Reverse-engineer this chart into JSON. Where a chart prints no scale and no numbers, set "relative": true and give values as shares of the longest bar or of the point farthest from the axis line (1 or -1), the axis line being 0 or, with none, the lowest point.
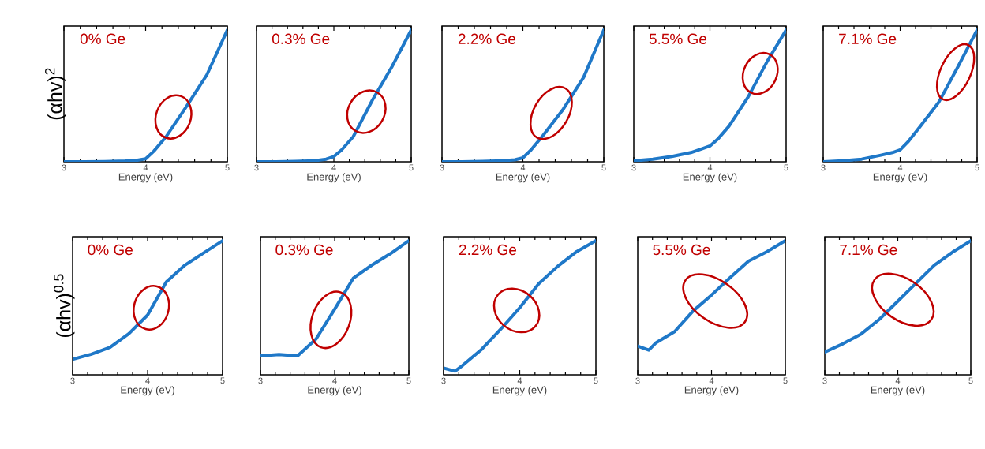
{
  "chart_data": [
    {
      "type": "line",
      "title": "0% Ge",
      "xlabel": "Energy (eV)",
      "ylabel": "(αhv)$^{2}$",
      "relative": true,
      "xlim": [
        3,
        5
      ],
      "xticks": [
        3,
        4,
        5
      ],
      "tick_labels": "x",
      "x": [
        3,
        3.25,
        3.5,
        3.75,
        3.9,
        4,
        4.1,
        4.25,
        4.5,
        4.75,
        5
      ],
      "series": [
        {
          "color": "#1f78c8",
          "values": [
            0,
            0,
            0.002,
            0.006,
            0.012,
            0.022,
            0.08,
            0.19,
            0.42,
            0.66,
            1
          ]
        }
      ]
    },
    {
      "type": "line",
      "title": "0.3% Ge",
      "xlabel": "Energy (eV)",
      "relative": true,
      "xlim": [
        3,
        5
      ],
      "xticks": [
        3,
        4,
        5
      ],
      "tick_labels": "x",
      "x": [
        3,
        3.25,
        3.5,
        3.75,
        3.9,
        4,
        4.1,
        4.25,
        4.5,
        4.75,
        5
      ],
      "series": [
        {
          "color": "#1f78c8",
          "values": [
            0,
            0,
            0.003,
            0.008,
            0.02,
            0.04,
            0.09,
            0.19,
            0.47,
            0.72,
            1
          ]
        }
      ]
    },
    {
      "type": "line",
      "title": "2.2% Ge",
      "xlabel": "Energy (eV)",
      "relative": true,
      "xlim": [
        3,
        5
      ],
      "xticks": [
        3,
        4,
        5
      ],
      "tick_labels": "x",
      "x": [
        3,
        3.25,
        3.5,
        3.75,
        3.9,
        4,
        4.1,
        4.25,
        4.5,
        4.75,
        5
      ],
      "series": [
        {
          "color": "#1f78c8",
          "values": [
            0,
            0,
            0.003,
            0.008,
            0.015,
            0.03,
            0.09,
            0.2,
            0.4,
            0.64,
            1
          ]
        }
      ]
    },
    {
      "type": "line",
      "title": "5.5% Ge",
      "xlabel": "Energy (eV)",
      "relative": true,
      "xlim": [
        3,
        5
      ],
      "xticks": [
        3,
        4,
        5
      ],
      "tick_labels": "x",
      "x": [
        3,
        3.25,
        3.5,
        3.75,
        3.9,
        4,
        4.1,
        4.25,
        4.5,
        4.75,
        5
      ],
      "series": [
        {
          "color": "#1f78c8",
          "values": [
            0.007,
            0.02,
            0.04,
            0.07,
            0.1,
            0.12,
            0.17,
            0.27,
            0.49,
            0.76,
            1
          ]
        }
      ]
    },
    {
      "type": "line",
      "title": "7.1% Ge",
      "xlabel": "Energy (eV)",
      "relative": true,
      "xlim": [
        3,
        5
      ],
      "xticks": [
        3,
        4,
        5
      ],
      "tick_labels": "x",
      "x": [
        3,
        3.25,
        3.5,
        3.75,
        3.9,
        4,
        4.1,
        4.25,
        4.5,
        4.75,
        5
      ],
      "series": [
        {
          "color": "#1f78c8",
          "values": [
            0,
            0.007,
            0.02,
            0.05,
            0.07,
            0.09,
            0.15,
            0.26,
            0.45,
            0.72,
            1
          ]
        }
      ]
    },
    {
      "type": "line",
      "title": "0% Ge",
      "xlabel": "Energy (eV)",
      "ylabel": "(αhv)$^{0.5}$",
      "relative": true,
      "xlim": [
        3,
        5
      ],
      "xticks": [
        3,
        4,
        5
      ],
      "tick_labels": "x",
      "x": [
        3,
        3.25,
        3.5,
        3.75,
        4,
        4.25,
        4.5,
        4.75,
        5
      ],
      "series": [
        {
          "color": "#1f78c8",
          "values": [
            0.116,
            0.154,
            0.205,
            0.307,
            0.446,
            0.693,
            0.819,
            0.91,
            1
          ]
        }
      ]
    },
    {
      "type": "line",
      "title": "0.3% Ge",
      "xlabel": "Energy (eV)",
      "relative": true,
      "xlim": [
        3,
        5
      ],
      "xticks": [
        3,
        4,
        5
      ],
      "tick_labels": "x",
      "x": [
        3,
        3.25,
        3.5,
        3.75,
        4,
        4.25,
        4.5,
        4.75,
        5
      ],
      "series": [
        {
          "color": "#1f78c8",
          "values": [
            0.141,
            0.151,
            0.141,
            0.268,
            0.489,
            0.72,
            0.818,
            0.903,
            1
          ]
        }
      ]
    },
    {
      "type": "line",
      "title": "2.2% Ge",
      "xlabel": "Energy (eV)",
      "relative": true,
      "xlim": [
        3,
        5
      ],
      "xticks": [
        3,
        4,
        5
      ],
      "tick_labels": "x",
      "x": [
        3,
        3.15,
        3.25,
        3.5,
        3.75,
        4,
        4.25,
        4.5,
        4.75,
        5
      ],
      "series": [
        {
          "color": "#1f78c8",
          "values": [
            0.05,
            0.027,
            0.07,
            0.19,
            0.34,
            0.5,
            0.68,
            0.81,
            0.92,
            1
          ]
        }
      ]
    },
    {
      "type": "line",
      "title": "5.5% Ge",
      "xlabel": "Energy (eV)",
      "relative": true,
      "xlim": [
        3,
        5
      ],
      "xticks": [
        3,
        4,
        5
      ],
      "tick_labels": "x",
      "x": [
        3,
        3.15,
        3.25,
        3.5,
        3.75,
        4,
        4.25,
        4.5,
        4.75,
        5
      ],
      "series": [
        {
          "color": "#1f78c8",
          "values": [
            0.214,
            0.184,
            0.24,
            0.322,
            0.476,
            0.595,
            0.724,
            0.847,
            0.918,
            1
          ]
        }
      ]
    },
    {
      "type": "line",
      "title": "7.1% Ge",
      "xlabel": "Energy (eV)",
      "relative": true,
      "xlim": [
        3,
        5
      ],
      "xticks": [
        3,
        4,
        5
      ],
      "tick_labels": "x",
      "x": [
        3,
        3.25,
        3.5,
        3.75,
        4,
        4.25,
        4.5,
        4.75,
        5
      ],
      "series": [
        {
          "color": "#1f78c8",
          "values": [
            0.17,
            0.232,
            0.305,
            0.415,
            0.549,
            0.683,
            0.817,
            0.915,
            1
          ]
        }
      ]
    }
  ]
}
